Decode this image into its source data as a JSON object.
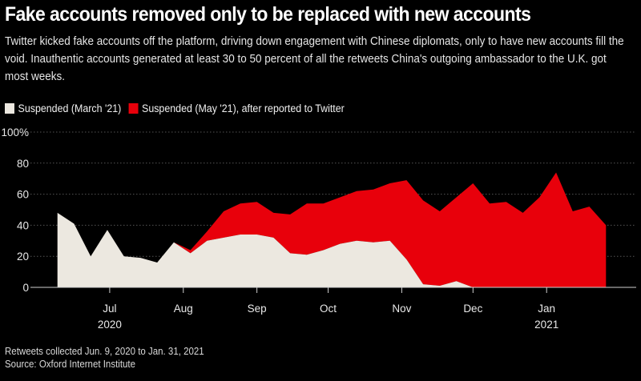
{
  "title": "Fake accounts removed only to be replaced with new accounts",
  "subtitle": "Twitter kicked fake accounts off the platform, driving down engagement with Chinese diplomats, only to have new accounts fill the void. Inauthentic accounts generated at least 30 to 50 percent of all the retweets China's outgoing ambassador to the U.K. got most weeks.",
  "legend": [
    {
      "label": "Suspended (March '21)",
      "color": "#ece8e0"
    },
    {
      "label": "Suspended (May '21), after reported to Twitter",
      "color": "#e8000b"
    }
  ],
  "footer": {
    "line1": "Retweets collected Jun. 9, 2020 to Jan. 31, 2021",
    "line2": "Source: Oxford Internet Institute"
  },
  "colors": {
    "background": "#000000",
    "march": "#ece8e0",
    "may": "#e8000b",
    "grid": "#555555"
  },
  "chart_data": {
    "type": "area",
    "stacked": true,
    "x": [
      "2020-06-09",
      "2020-06-16",
      "2020-06-23",
      "2020-06-30",
      "2020-07-07",
      "2020-07-14",
      "2020-07-21",
      "2020-07-28",
      "2020-08-04",
      "2020-08-11",
      "2020-08-18",
      "2020-08-25",
      "2020-09-01",
      "2020-09-08",
      "2020-09-15",
      "2020-09-22",
      "2020-09-29",
      "2020-10-06",
      "2020-10-13",
      "2020-10-20",
      "2020-10-27",
      "2020-11-03",
      "2020-11-10",
      "2020-11-17",
      "2020-11-24",
      "2020-12-01",
      "2020-12-08",
      "2020-12-15",
      "2020-12-22",
      "2020-12-29",
      "2021-01-05",
      "2021-01-12",
      "2021-01-19",
      "2021-01-26"
    ],
    "series": [
      {
        "name": "Suspended (March '21)",
        "values": [
          48,
          41,
          20,
          37,
          20,
          19,
          16,
          29,
          22,
          30,
          32,
          34,
          34,
          32,
          22,
          21,
          24,
          28,
          30,
          29,
          30,
          18,
          2,
          1,
          4,
          0,
          0,
          0,
          0,
          0,
          0,
          0,
          0,
          0
        ]
      },
      {
        "name": "Suspended (May '21), after reported to Twitter",
        "values": [
          0,
          0,
          0,
          0,
          0,
          0,
          0,
          0,
          2,
          6,
          17,
          20,
          21,
          16,
          25,
          33,
          30,
          30,
          32,
          34,
          37,
          51,
          54,
          48,
          54,
          67,
          54,
          55,
          48,
          58,
          74,
          49,
          52,
          40
        ]
      }
    ],
    "y_ticks": [
      "0",
      "20",
      "40",
      "60",
      "80",
      "100%"
    ],
    "ylim": [
      0,
      100
    ],
    "x_ticks": [
      {
        "date": "2020-07-01",
        "label": "Jul",
        "year": "2020"
      },
      {
        "date": "2020-08-01",
        "label": "Aug",
        "year": ""
      },
      {
        "date": "2020-09-01",
        "label": "Sep",
        "year": ""
      },
      {
        "date": "2020-10-01",
        "label": "Oct",
        "year": ""
      },
      {
        "date": "2020-11-01",
        "label": "Nov",
        "year": ""
      },
      {
        "date": "2020-12-01",
        "label": "Dec",
        "year": ""
      },
      {
        "date": "2021-01-01",
        "label": "Jan",
        "year": "2021"
      }
    ],
    "grid": true
  }
}
